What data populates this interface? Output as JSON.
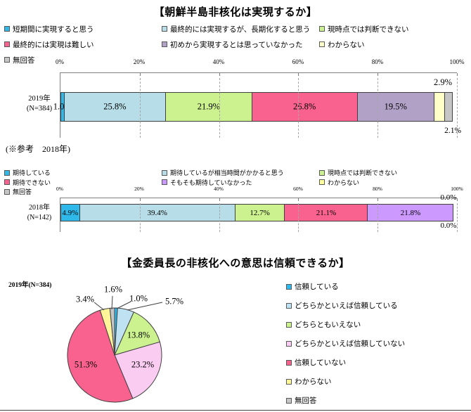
{
  "chart_data": [
    {
      "type": "stacked_bar_h",
      "title": "【朝鮮半島非核化は実現するか】",
      "group": "2019年",
      "n_label": "(N=384)",
      "xlim": [
        0,
        100
      ],
      "axis_ticks": [
        "0%",
        "20%",
        "40%",
        "60%",
        "80%",
        "100%"
      ],
      "grid": "dashed-vertical-every-20",
      "legend_position": "top-3-columns",
      "series": [
        {
          "name": "短期間に実現すると思う",
          "value": 1.0,
          "display": "1.0%",
          "color": "#2FB9EA",
          "label_pos": "inside"
        },
        {
          "name": "最終的には実現するが、長期化すると思う",
          "value": 25.8,
          "display": "25.8%",
          "color": "#B7DEE8",
          "label_pos": "inside"
        },
        {
          "name": "現時点では判断できない",
          "value": 21.9,
          "display": "21.9%",
          "color": "#CCF18F",
          "label_pos": "inside"
        },
        {
          "name": "最終的には実現は難しい",
          "value": 26.8,
          "display": "26.8%",
          "color": "#F9618F",
          "label_pos": "inside"
        },
        {
          "name": "初めから実現するとは思っていなかった",
          "value": 19.5,
          "display": "19.5%",
          "color": "#B2A1C7",
          "label_pos": "inside"
        },
        {
          "name": "わからない",
          "value": 2.9,
          "display": "2.9%",
          "color": "#FFFFC8",
          "label_pos": "above"
        },
        {
          "name": "無回答",
          "value": 2.1,
          "display": "2.1%",
          "color": "#C6C6C6",
          "label_pos": "below"
        }
      ]
    },
    {
      "type": "stacked_bar_h",
      "heading": "(※参考　2018年)",
      "title": "",
      "group": "2018年",
      "n_label": "(N=142)",
      "xlim": [
        0,
        100
      ],
      "axis_ticks": [
        "0%",
        "20%",
        "40%",
        "60%",
        "80%",
        "100%"
      ],
      "grid": "dashed-vertical-every-20",
      "legend_position": "top-3-columns",
      "series": [
        {
          "name": "期待している",
          "value": 4.9,
          "display": "4.9%",
          "color": "#2FB9EA",
          "label_pos": "inside"
        },
        {
          "name": "期待しているが相当時間がかかると思う",
          "value": 39.4,
          "display": "39.4%",
          "color": "#B7DEE8",
          "label_pos": "inside"
        },
        {
          "name": "現時点では判断できない",
          "value": 12.7,
          "display": "12.7%",
          "color": "#CCF18F",
          "label_pos": "inside"
        },
        {
          "name": "期待できない",
          "value": 21.1,
          "display": "21.1%",
          "color": "#F9618F",
          "label_pos": "inside"
        },
        {
          "name": "そもそも期待していなかった",
          "value": 21.8,
          "display": "21.8%",
          "color": "#CC99FF",
          "label_pos": "inside"
        },
        {
          "name": "わからない",
          "value": 0.0,
          "display": "0.0%",
          "color": "#FFFF99",
          "label_pos": "above",
          "align": "end"
        },
        {
          "name": "無回答",
          "value": 0.0,
          "display": "0.0%",
          "color": "#C6C6C6",
          "label_pos": "below",
          "align": "end"
        }
      ]
    },
    {
      "type": "pie",
      "title": "【金委員長の非核化への意思は信頼できるか】",
      "subtitle": "2019年(N=384)",
      "start_angle_deg": 0,
      "direction": "clockwise",
      "legend_position": "right",
      "slices": [
        {
          "name": "信頼している",
          "value": 1.0,
          "display": "1.0%",
          "color": "#2FB9EA"
        },
        {
          "name": "どちらかといえば信頼している",
          "value": 5.7,
          "display": "5.7%",
          "color": "#BFE2F2"
        },
        {
          "name": "どちらともいえない",
          "value": 13.8,
          "display": "13.8%",
          "color": "#CCF18F"
        },
        {
          "name": "どちらかといえば信頼していない",
          "value": 23.2,
          "display": "23.2%",
          "color": "#FACCF2"
        },
        {
          "name": "信頼していない",
          "value": 51.3,
          "display": "51.3%",
          "color": "#F9618F"
        },
        {
          "name": "わからない",
          "value": 3.4,
          "display": "3.4%",
          "color": "#FFF599"
        },
        {
          "name": "無回答",
          "value": 1.6,
          "display": "1.6%",
          "color": "#C6C6C6"
        }
      ]
    }
  ]
}
